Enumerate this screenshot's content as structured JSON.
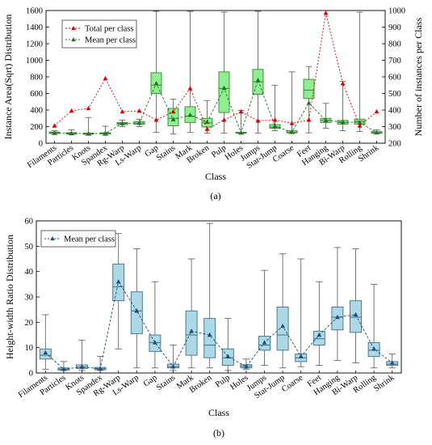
{
  "colors": {
    "box_a_fill": "#90EE90",
    "box_a_stroke": "#2E8B2E",
    "box_b_fill": "#ADD8E6",
    "box_b_stroke": "#3E6F86",
    "mean_a": "#2E6B2E",
    "mean_b": "#1F4E79",
    "total": "#E00000",
    "median_a": "#2E8B2E",
    "median_b": "#3E6F86"
  },
  "chart_data": [
    {
      "type": "box",
      "panel_label": "(a)",
      "xlabel": "Class",
      "ylabel": "Instance Area(Sqrt) Distribution",
      "ylabel_right": "Number of instances per Class",
      "ylim": [
        0,
        1600
      ],
      "ylim_right": [
        200,
        1000
      ],
      "yticks": [
        0,
        200,
        400,
        600,
        800,
        1000,
        1200,
        1400,
        1600
      ],
      "yticks_right": [
        200,
        300,
        400,
        500,
        600,
        700,
        800,
        900,
        1000
      ],
      "legend": [
        "Total per class",
        "Mean per class"
      ],
      "legend_position": "top-left",
      "categories": [
        "Filaments",
        "Particles",
        "Knots",
        "Spandex",
        "Rg-Warp",
        "Ls-Warp",
        "Gap",
        "Stains",
        "Mark",
        "Broken",
        "Pulp",
        "Holes",
        "Jumps",
        "Star-Jump",
        "Coarse",
        "Feet",
        "Hanging",
        "Bi-Warp",
        "Rolling",
        "Shrink"
      ],
      "boxes": [
        [
          105,
          118,
          125,
          135,
          150
        ],
        [
          100,
          110,
          118,
          128,
          160
        ],
        [
          95,
          108,
          115,
          122,
          310
        ],
        [
          95,
          112,
          118,
          126,
          205
        ],
        [
          200,
          225,
          238,
          250,
          280
        ],
        [
          200,
          228,
          242,
          262,
          290
        ],
        [
          130,
          600,
          700,
          850,
          1590
        ],
        [
          110,
          210,
          300,
          420,
          530
        ],
        [
          130,
          250,
          325,
          440,
          1590
        ],
        [
          120,
          195,
          245,
          300,
          515
        ],
        [
          120,
          370,
          660,
          860,
          1580
        ],
        [
          110,
          120,
          125,
          132,
          395
        ],
        [
          120,
          590,
          740,
          890,
          1590
        ],
        [
          150,
          180,
          195,
          225,
          700
        ],
        [
          115,
          125,
          132,
          150,
          860
        ],
        [
          125,
          540,
          640,
          770,
          925
        ],
        [
          180,
          250,
          275,
          300,
          480
        ],
        [
          150,
          230,
          250,
          275,
          745
        ],
        [
          140,
          230,
          265,
          290,
          1580
        ],
        [
          110,
          120,
          128,
          140,
          160
        ]
      ],
      "series": [
        {
          "name": "Mean per class",
          "values": [
            122,
            118,
            115,
            119,
            238,
            244,
            720,
            285,
            340,
            255,
            665,
            126,
            760,
            205,
            135,
            485,
            275,
            255,
            250,
            128
          ]
        },
        {
          "name": "Total per class",
          "values": [
            305,
            395,
            410,
            590,
            390,
            395,
            340,
            390,
            530,
            285,
            340,
            390,
            335,
            340,
            320,
            340,
            985,
            560,
            305,
            390
          ]
        }
      ],
      "series_axis": {
        "Mean per class": "left",
        "Total per class": "right"
      }
    },
    {
      "type": "box",
      "panel_label": "(b)",
      "xlabel": "Class",
      "ylabel": "Height-width Ratio Distribution",
      "ylim": [
        0,
        60
      ],
      "yticks": [
        0,
        10,
        20,
        30,
        40,
        50,
        60
      ],
      "legend": [
        "Mean per class"
      ],
      "legend_position": "top-left",
      "categories": [
        "Filaments",
        "Particles",
        "Knots",
        "Spandex",
        "Rg-Warp",
        "Ls-Warp",
        "Gap",
        "Stains",
        "Mark",
        "Broken",
        "Pulp",
        "Holes",
        "Jumps",
        "Star-Jump",
        "Coarse",
        "Feet",
        "Hanging",
        "Bi-Warp",
        "Rolling",
        "Shrink"
      ],
      "boxes": [
        [
          1.5,
          5.5,
          7,
          9.5,
          23
        ],
        [
          1,
          1.2,
          1.5,
          2,
          4.5
        ],
        [
          1,
          1.8,
          2.3,
          3.2,
          13
        ],
        [
          1,
          1.3,
          1.7,
          2.2,
          6.5
        ],
        [
          9.5,
          28.5,
          34,
          43,
          55
        ],
        [
          2,
          15.5,
          24.5,
          32,
          49
        ],
        [
          2,
          8.5,
          12,
          15,
          36
        ],
        [
          1,
          2,
          2.5,
          3.5,
          11
        ],
        [
          2,
          7,
          15,
          24.5,
          45
        ],
        [
          2,
          6,
          11,
          21.5,
          59
        ],
        [
          1,
          3,
          6,
          9.5,
          21.5
        ],
        [
          1.5,
          2,
          2.6,
          3.3,
          5.5
        ],
        [
          3,
          9,
          11,
          14.5,
          40.5
        ],
        [
          2,
          9,
          15,
          26,
          47
        ],
        [
          2.5,
          4.5,
          6,
          7.5,
          45
        ],
        [
          3,
          11,
          13.5,
          16.5,
          36
        ],
        [
          5,
          17,
          22,
          26,
          49.5
        ],
        [
          4,
          16,
          22,
          28.5,
          49
        ],
        [
          2,
          6.5,
          9,
          12,
          35
        ],
        [
          2,
          3,
          3.5,
          4.5,
          7.5
        ]
      ],
      "series": [
        {
          "name": "Mean per class",
          "values": [
            8,
            1.5,
            2.4,
            1.7,
            36,
            24.5,
            12,
            2.5,
            16.5,
            15,
            6.5,
            2.5,
            12,
            18.5,
            6.5,
            15,
            22,
            23,
            9.5,
            4
          ]
        }
      ]
    }
  ]
}
